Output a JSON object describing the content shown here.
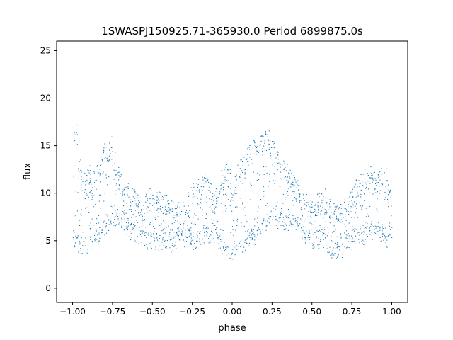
{
  "chart_data": {
    "type": "scatter",
    "title": "1SWASPJ150925.71-365930.0 Period 6899875.0s",
    "xlabel": "phase",
    "ylabel": "flux",
    "xlim": [
      -1.1,
      1.1
    ],
    "ylim": [
      -1.5,
      26.0
    ],
    "xticks": [
      -1.0,
      -0.75,
      -0.5,
      -0.25,
      0.0,
      0.25,
      0.5,
      0.75,
      1.0
    ],
    "xtick_labels": [
      "−1.00",
      "−0.75",
      "−0.50",
      "−0.25",
      "0.00",
      "0.25",
      "0.50",
      "0.75",
      "1.00"
    ],
    "yticks": [
      0,
      5,
      10,
      15,
      20,
      25
    ],
    "ytick_labels": [
      "0",
      "5",
      "10",
      "15",
      "20",
      "25"
    ],
    "grid": false,
    "point_color": "#1f77b4",
    "series": [
      {
        "x": [
          -1.0,
          -0.98,
          -0.96,
          -0.94,
          -0.92,
          -0.9,
          -0.88,
          -0.86,
          -0.84,
          -0.82,
          -0.8,
          -0.78,
          -0.76,
          -0.74,
          -0.72,
          -0.7,
          -0.68,
          -0.66,
          -0.64,
          -0.62,
          -0.6,
          -0.58,
          -0.56,
          -0.54,
          -0.52,
          -0.5,
          -0.48,
          -0.46,
          -0.44,
          -0.42,
          -0.4,
          -0.38,
          -0.36,
          -0.34,
          -0.32,
          -0.3,
          -0.28,
          -0.26,
          -0.24,
          -0.22,
          -0.2,
          -0.18,
          -0.16,
          -0.14,
          -0.12,
          -0.1,
          -0.08,
          -0.06,
          -0.04,
          -0.02,
          0.0,
          0.02,
          0.04,
          0.06,
          0.08,
          0.1,
          0.12,
          0.14,
          0.16,
          0.18,
          0.2,
          0.22,
          0.24,
          0.26,
          0.28,
          0.3,
          0.32,
          0.34,
          0.36,
          0.38,
          0.4,
          0.42,
          0.44,
          0.46,
          0.48,
          0.5,
          0.52,
          0.54,
          0.56,
          0.58,
          0.6,
          0.62,
          0.64,
          0.66,
          0.68,
          0.7,
          0.72,
          0.74,
          0.76,
          0.78,
          0.8,
          0.82,
          0.84,
          0.86,
          0.88,
          0.9,
          0.92,
          0.94,
          0.96,
          0.98,
          1.0
        ],
        "y_upper": [
          17.0,
          16.5,
          12.5,
          12.0,
          11.5,
          12.0,
          11.0,
          12.0,
          13.0,
          14.0,
          14.5,
          14.0,
          15.0,
          13.5,
          12.0,
          11.0,
          10.5,
          10.0,
          9.5,
          9.5,
          9.0,
          8.5,
          8.0,
          9.0,
          10.0,
          9.5,
          9.0,
          9.5,
          9.0,
          9.0,
          9.0,
          8.5,
          8.0,
          8.0,
          7.5,
          8.0,
          9.0,
          10.0,
          10.5,
          10.5,
          10.0,
          11.0,
          10.5,
          10.0,
          9.0,
          9.5,
          10.0,
          11.5,
          12.0,
          11.5,
          10.0,
          11.0,
          12.0,
          12.5,
          13.0,
          14.0,
          14.0,
          14.5,
          15.0,
          15.0,
          15.5,
          15.5,
          15.0,
          14.5,
          13.5,
          13.0,
          12.5,
          12.0,
          11.5,
          11.0,
          10.5,
          10.0,
          9.5,
          9.0,
          9.0,
          8.5,
          8.5,
          9.0,
          9.0,
          9.5,
          9.0,
          8.5,
          8.5,
          8.0,
          8.0,
          8.5,
          9.0,
          9.5,
          10.0,
          10.5,
          11.0,
          11.0,
          11.5,
          12.0,
          12.0,
          11.5,
          11.5,
          12.0,
          12.0,
          10.5,
          10.0
        ],
        "y_lower": [
          5.5,
          5.0,
          4.5,
          4.5,
          4.5,
          5.0,
          5.0,
          5.5,
          5.5,
          6.0,
          6.5,
          7.0,
          7.5,
          7.5,
          7.5,
          7.0,
          7.0,
          6.5,
          6.0,
          6.0,
          5.5,
          5.5,
          5.5,
          5.0,
          5.0,
          5.0,
          5.0,
          4.5,
          5.0,
          5.0,
          5.0,
          4.5,
          5.0,
          5.5,
          5.5,
          5.0,
          5.5,
          5.5,
          5.0,
          5.0,
          5.5,
          5.5,
          6.0,
          5.5,
          5.5,
          6.0,
          5.0,
          4.5,
          4.0,
          4.0,
          4.0,
          4.0,
          4.5,
          4.5,
          4.5,
          5.0,
          5.5,
          5.5,
          6.0,
          6.5,
          7.0,
          7.0,
          7.5,
          7.0,
          7.0,
          7.5,
          7.0,
          7.0,
          6.5,
          6.5,
          6.5,
          6.0,
          6.0,
          5.5,
          5.5,
          5.0,
          5.0,
          5.0,
          5.5,
          5.0,
          4.5,
          4.0,
          4.0,
          4.0,
          4.0,
          4.5,
          5.0,
          5.0,
          5.5,
          5.5,
          5.5,
          5.5,
          6.0,
          6.0,
          6.0,
          6.5,
          6.0,
          5.5,
          5.0,
          5.5,
          6.0
        ]
      }
    ]
  }
}
